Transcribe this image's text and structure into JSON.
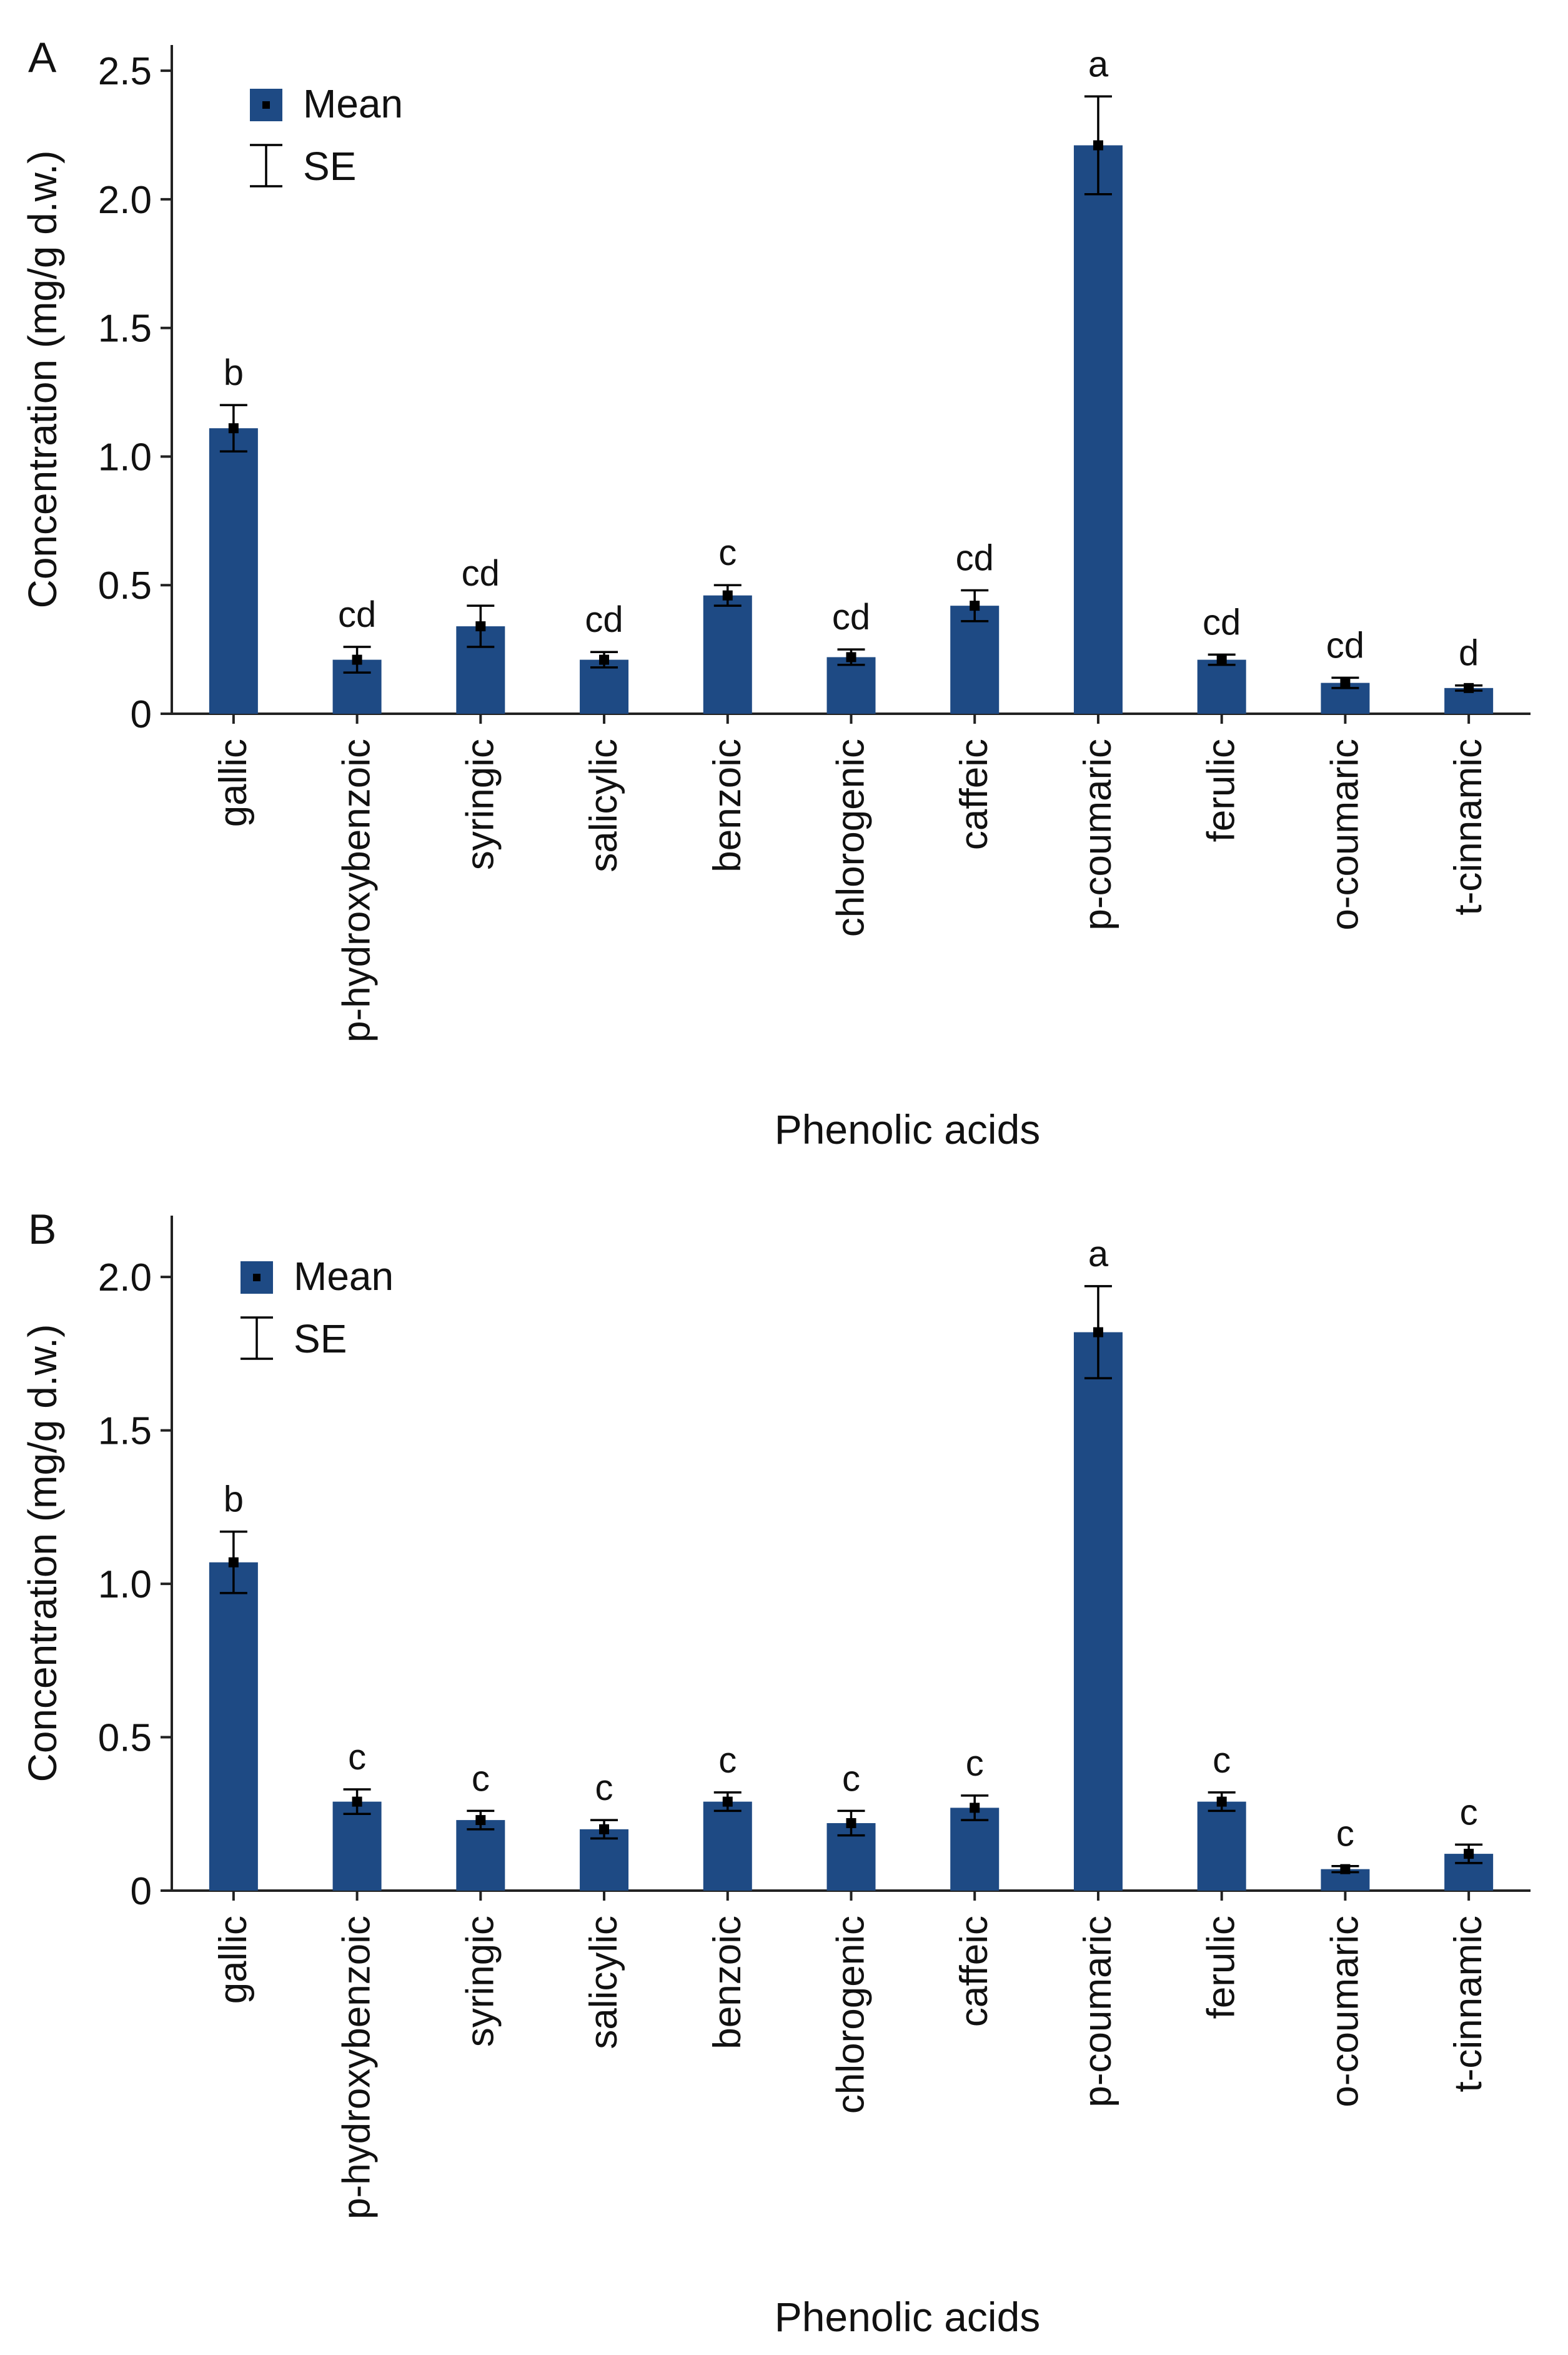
{
  "colors": {
    "bar": "#1e4a84",
    "axis": "#222222",
    "text": "#111111"
  },
  "categories": [
    "gallic",
    "p-hydroxybenzoic",
    "syringic",
    "salicylic",
    "benzoic",
    "chlorogenic",
    "caffeic",
    "p-coumaric",
    "ferulic",
    "o-coumaric",
    "t-cinnamic"
  ],
  "chart_data": [
    {
      "type": "bar",
      "panel_label": "A",
      "xlabel": "Phenolic acids",
      "ylabel": "Concentration (mg/g d.w.)",
      "ylim": [
        0,
        2.6
      ],
      "yticks": [
        0,
        0.5,
        1.0,
        1.5,
        2.0,
        2.5
      ],
      "ytick_labels": [
        "0",
        "0.5",
        "1.0",
        "1.5",
        "2.0",
        "2.5"
      ],
      "legend": {
        "mean": "Mean",
        "se": "SE",
        "position": "top-left"
      },
      "series": [
        {
          "name": "Mean",
          "values": [
            1.11,
            0.21,
            0.34,
            0.21,
            0.46,
            0.22,
            0.42,
            2.21,
            0.21,
            0.12,
            0.1
          ],
          "se": [
            0.09,
            0.05,
            0.08,
            0.03,
            0.04,
            0.03,
            0.06,
            0.19,
            0.02,
            0.02,
            0.01
          ],
          "letters": [
            "b",
            "cd",
            "cd",
            "cd",
            "c",
            "cd",
            "cd",
            "a",
            "cd",
            "cd",
            "d"
          ]
        }
      ]
    },
    {
      "type": "bar",
      "panel_label": "B",
      "xlabel": "Phenolic acids",
      "ylabel": "Concentration (mg/g d.w.)",
      "ylim": [
        0,
        2.2
      ],
      "yticks": [
        0,
        0.5,
        1.0,
        1.5,
        2.0
      ],
      "ytick_labels": [
        "0",
        "0.5",
        "1.0",
        "1.5",
        "2.0"
      ],
      "legend": {
        "mean": "Mean",
        "se": "SE",
        "position": "top-left"
      },
      "series": [
        {
          "name": "Mean",
          "values": [
            1.07,
            0.29,
            0.23,
            0.2,
            0.29,
            0.22,
            0.27,
            1.82,
            0.29,
            0.07,
            0.12
          ],
          "se": [
            0.1,
            0.04,
            0.03,
            0.03,
            0.03,
            0.04,
            0.04,
            0.15,
            0.03,
            0.01,
            0.03
          ],
          "letters": [
            "b",
            "c",
            "c",
            "c",
            "c",
            "c",
            "c",
            "a",
            "c",
            "c",
            "c"
          ]
        }
      ]
    }
  ]
}
